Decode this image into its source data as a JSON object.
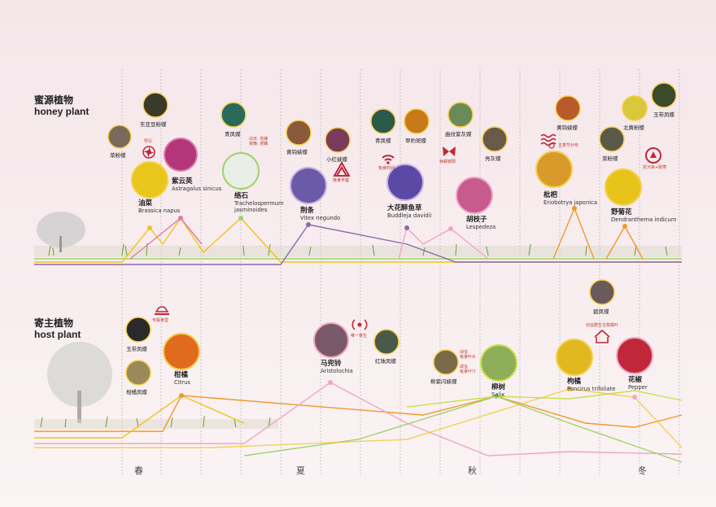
{
  "sections": {
    "honey": {
      "cn": "蜜源植物",
      "en": "honey plant"
    },
    "host": {
      "cn": "寄主植物",
      "en": "host plant"
    }
  },
  "seasons": [
    "春",
    "夏",
    "秋",
    "冬"
  ],
  "honey_plants": [
    {
      "id": "rape",
      "cn": "油菜",
      "la": "Brassica napus",
      "color": "#e8c61c"
    },
    {
      "id": "milkvetch",
      "cn": "紫云英",
      "la": "Astragalus sinicus",
      "color": "#b3367a"
    },
    {
      "id": "jasmine",
      "cn": "络石",
      "la": "Trachelospermum jasminoides",
      "color": "#e9eee6"
    },
    {
      "id": "vitex",
      "cn": "荆条",
      "la": "Vitex negundo",
      "color": "#6a5aa8"
    },
    {
      "id": "buddleja",
      "cn": "大花醉鱼草",
      "la": "Buddleja davidii",
      "color": "#5a4aa5"
    },
    {
      "id": "lespedeza",
      "cn": "胡枝子",
      "la": "Lespedeza",
      "color": "#c85a8e"
    },
    {
      "id": "loquat",
      "cn": "枇杷",
      "la": "Eriobotrya japonica",
      "color": "#d89a2a"
    },
    {
      "id": "chrysanthemum",
      "cn": "野菊花",
      "la": "Dendranthema indicum",
      "color": "#e7c41a"
    }
  ],
  "host_plants": [
    {
      "id": "citrus",
      "cn": "柑橘",
      "la": "Citrus",
      "color": "#e06a1e"
    },
    {
      "id": "aristolochia",
      "cn": "马兜铃",
      "la": "Aristolochia",
      "color": "#7a5a6a"
    },
    {
      "id": "salix",
      "cn": "柳树",
      "la": "Salix",
      "color": "#8fae5a"
    },
    {
      "id": "poncirus",
      "cn": "枸橘",
      "la": "Poncirus trifoliate",
      "color": "#e0b820"
    },
    {
      "id": "pepper",
      "cn": "花椒",
      "la": "Pepper",
      "color": "#c0283a"
    }
  ],
  "butterflies": {
    "b1": "东亚豆粉蝶",
    "b2": "菜粉蝶",
    "b3": "青凤蝶",
    "b4": "黄钩蛱蝶",
    "b5": "小红蛱蝶",
    "b6": "青凤蝶",
    "b7": "翠豹斑蝶",
    "b8": "曲纹紫灰蝶",
    "b9": "亮灰蝶",
    "b10": "黄钩蛱蝶",
    "b11": "菜粉蝶",
    "b12": "北黄粉蝶",
    "b13": "玉带凤蝶",
    "h1": "玉带凤蝶",
    "h2": "柑橘凤蝶",
    "h3": "红珠凤蝶",
    "h4": "柳紫闪蛱蝶",
    "h5": "碧凤蝶"
  },
  "notes": {
    "n1": "导引",
    "n2": "白天: 花蜂\n夜晚: 虎蛾",
    "n3": "吸食丰盛",
    "n4": "吸食时间",
    "n5": "休耕遮阳",
    "n6": "五季节分布",
    "n7": "抗污染+耐寒",
    "n8": "专属食堂",
    "n9": "唯一寄生",
    "n10": "幼虫\n吸食叶片",
    "n11": "成虫\n吸食叶汁",
    "n12": "幼虫群生在柑橘叶"
  },
  "colors": {
    "yellow": "#f0c419",
    "pink": "#e07aa8",
    "green": "#9fd36a",
    "purple": "#8a6aa8",
    "orange": "#ef9a2a",
    "lime": "#c9e04a",
    "lightpink": "#f0a6c4"
  }
}
